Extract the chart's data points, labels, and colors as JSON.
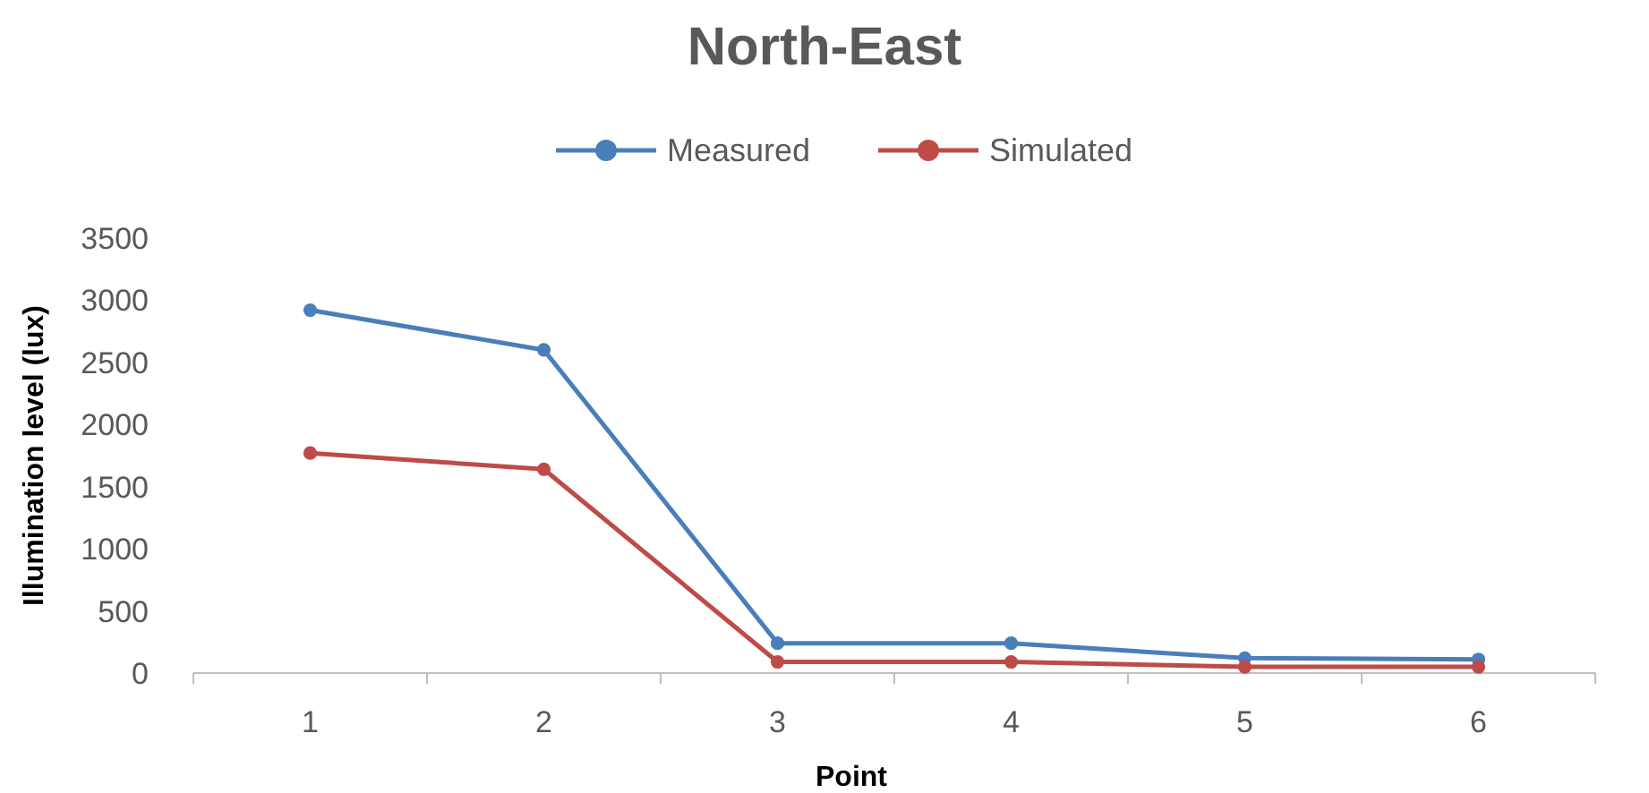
{
  "chart_data": {
    "type": "line",
    "title": "North-East",
    "xlabel": "Point",
    "ylabel": "Illumination level (lux)",
    "categories": [
      "1",
      "2",
      "3",
      "4",
      "5",
      "6"
    ],
    "series": [
      {
        "name": "Measured",
        "color": "#4a7ebb",
        "values": [
          2920,
          2600,
          240,
          240,
          120,
          110
        ]
      },
      {
        "name": "Simulated",
        "color": "#be4b48",
        "values": [
          1770,
          1640,
          90,
          90,
          50,
          50
        ]
      }
    ],
    "ylim": [
      0,
      3500
    ],
    "yticks": [
      0,
      500,
      1000,
      1500,
      2000,
      2500,
      3000,
      3500
    ],
    "grid": false,
    "legend": "top",
    "marker": "circle",
    "line_style": "solid"
  }
}
